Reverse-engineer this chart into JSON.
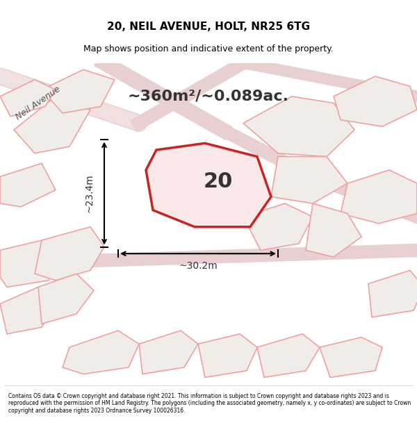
{
  "title": "20, NEIL AVENUE, HOLT, NR25 6TG",
  "subtitle": "Map shows position and indicative extent of the property.",
  "area_text": "~360m²/~0.089ac.",
  "number_label": "20",
  "dim_width": "~30.2m",
  "dim_height": "~23.4m",
  "street_label": "Neil Avenue",
  "footer_text": "Contains OS data © Crown copyright and database right 2021. This information is subject to Crown copyright and database rights 2023 and is reproduced with the permission of HM Land Registry. The polygons (including the associated geometry, namely x, y co-ordinates) are subject to Crown copyright and database rights 2023 Ordnance Survey 100026316.",
  "bg_color": "#f0ede8",
  "map_bg": "#f0ede8",
  "footer_bg": "#ffffff",
  "plot_color": "#cc2222",
  "other_plot_color": "#f0a0a0",
  "title_bg": "#ffffff"
}
